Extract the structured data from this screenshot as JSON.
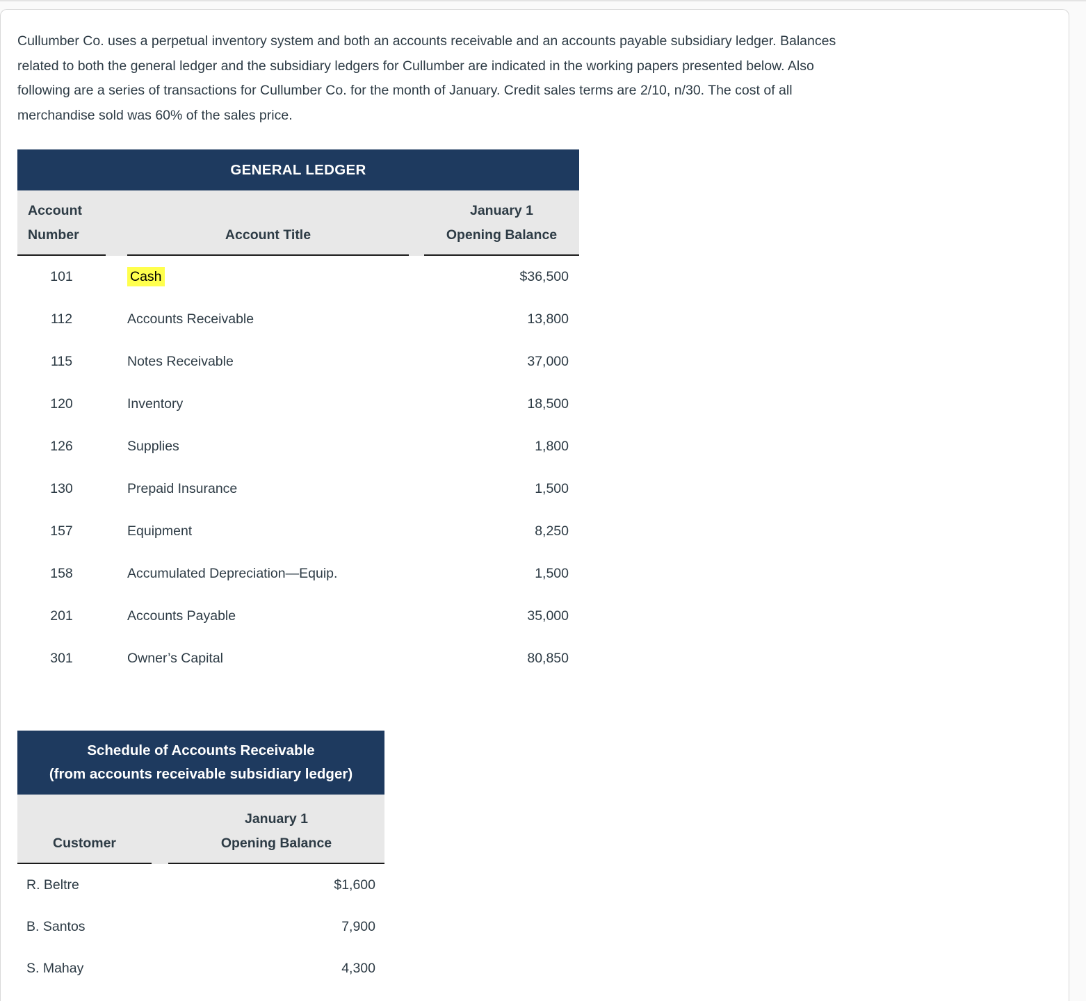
{
  "colors": {
    "navy_header": "#1e3a5f",
    "column_header_gray": "#e8e8e8",
    "text": "#2d3b45",
    "highlight_yellow": "#ffff4d"
  },
  "intro": {
    "full_text": "Cullumber Co. uses a perpetual inventory system and both an accounts receivable and an accounts payable subsidiary ledger. Balances related to both the general ledger and the subsidiary ledgers for Cullumber are indicated in the working papers presented below. Also following are a series of transactions for Cullumber Co. for the month of January. Credit sales terms are 2/10, n/30. The cost of all merchandise sold was 60% of the sales price.",
    "lines": [
      "Cullumber Co. uses a perpetual inventory system and both an accounts receivable and an accounts payable subsidiary ledger. Balances",
      "related to both the general ledger and the subsidiary ledgers for Cullumber are indicated in the working papers presented below. Also",
      "following are a series of transactions for Cullumber Co. for the month of January. Credit sales terms are 2/10, n/30. The cost of all",
      "merchandise sold was 60% of the sales price."
    ]
  },
  "general_ledger": {
    "title": "GENERAL LEDGER",
    "columns": {
      "account_number_line1": "Account",
      "account_number_line2": "Number",
      "account_title": "Account Title",
      "balance_line1": "January 1",
      "balance_line2": "Opening Balance"
    },
    "rows": [
      {
        "number": "101",
        "title": "Cash",
        "balance": "$36,500",
        "highlighted": true
      },
      {
        "number": "112",
        "title": "Accounts Receivable",
        "balance": "13,800"
      },
      {
        "number": "115",
        "title": "Notes Receivable",
        "balance": "37,000"
      },
      {
        "number": "120",
        "title": "Inventory",
        "balance": "18,500"
      },
      {
        "number": "126",
        "title": "Supplies",
        "balance": "1,800"
      },
      {
        "number": "130",
        "title": "Prepaid Insurance",
        "balance": "1,500"
      },
      {
        "number": "157",
        "title": "Equipment",
        "balance": "8,250"
      },
      {
        "number": "158",
        "title": "Accumulated Depreciation—Equip.",
        "balance": "1,500"
      },
      {
        "number": "201",
        "title": "Accounts Payable",
        "balance": "35,000"
      },
      {
        "number": "301",
        "title": "Owner’s Capital",
        "balance": "80,850"
      }
    ]
  },
  "ar_schedule": {
    "title_line1": "Schedule of Accounts Receivable",
    "title_line2": "(from accounts receivable subsidiary ledger)",
    "columns": {
      "customer": "Customer",
      "balance_line1": "January 1",
      "balance_line2": "Opening Balance"
    },
    "rows": [
      {
        "customer": "R. Beltre",
        "balance": "$1,600"
      },
      {
        "customer": "B. Santos",
        "balance": "7,900"
      },
      {
        "customer": "S. Mahay",
        "balance": "4,300"
      }
    ]
  }
}
